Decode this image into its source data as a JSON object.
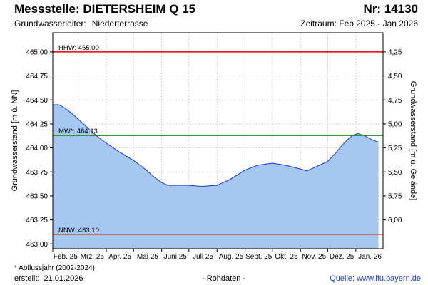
{
  "header": {
    "title": "Messstelle: DIETERSHEIM Q 15",
    "number": "Nr: 14130",
    "aquifer_label": "Grundwasserleiter:",
    "aquifer_value": "Niederterrasse",
    "period": "Zeitraum: Feb 2025 - Jan 2026"
  },
  "footer": {
    "footnote": "* Abflussjahr (2002-2024)",
    "created_label": "erstellt:",
    "created_date": "21.01.2026",
    "raw": "- Rohdaten -",
    "source": "Quelle:  www.lfu.bayern.de"
  },
  "chart_data": {
    "type": "area",
    "ylabel_left": "Grundwasserstand [m ü. NN]",
    "ylabel_right": "Grundwasserstand [m u. Gelände]",
    "ylim_left": [
      462.95,
      465.2
    ],
    "yticks_left": [
      463.0,
      463.25,
      463.5,
      463.75,
      464.0,
      464.25,
      464.5,
      464.75,
      465.0
    ],
    "ytick_labels_left": [
      "463,00",
      "463,25",
      "463,50",
      "463,75",
      "464,00",
      "464,25",
      "464,50",
      "464,75",
      "465,00"
    ],
    "right_axis_offset": 469.25,
    "yticks_right": [
      4.25,
      4.5,
      4.75,
      5.0,
      5.25,
      5.5,
      5.75,
      6.0
    ],
    "ytick_labels_right": [
      "4,25",
      "4,50",
      "4,75",
      "5,00",
      "5,25",
      "5,50",
      "5,75",
      "6,00"
    ],
    "xlim": [
      "2025-02-01",
      "2026-01-31"
    ],
    "xticks": [
      "Feb. 25",
      "Mrz. 25",
      "Apr. 25",
      "Mai 25",
      "Juni 25",
      "Juli 25",
      "Aug. 25",
      "Sept. 25",
      "Okt. 25",
      "Nov. 25",
      "Dez. 25",
      "Jan. 26"
    ],
    "grid": true,
    "reference_lines": [
      {
        "label": "HHW: 465.00",
        "value": 465.0,
        "color": "#e00000"
      },
      {
        "label": "MW*: 464.13",
        "value": 464.13,
        "color": "#1a8c1a"
      },
      {
        "label": "NNW: 463.10",
        "value": 463.1,
        "color": "#e00000"
      }
    ],
    "series": [
      {
        "color": "#2244dd",
        "fill": "#a6c8f0",
        "points": [
          [
            "2025-02-01",
            464.45
          ],
          [
            "2025-02-08",
            464.45
          ],
          [
            "2025-02-15",
            464.41
          ],
          [
            "2025-02-22",
            464.36
          ],
          [
            "2025-03-01",
            464.3
          ],
          [
            "2025-03-08",
            464.24
          ],
          [
            "2025-03-15",
            464.18
          ],
          [
            "2025-03-22",
            464.12
          ],
          [
            "2025-04-01",
            464.05
          ],
          [
            "2025-04-15",
            463.96
          ],
          [
            "2025-05-01",
            463.87
          ],
          [
            "2025-05-15",
            463.77
          ],
          [
            "2025-05-22",
            463.71
          ],
          [
            "2025-06-01",
            463.64
          ],
          [
            "2025-06-08",
            463.61
          ],
          [
            "2025-06-15",
            463.61
          ],
          [
            "2025-07-01",
            463.61
          ],
          [
            "2025-07-15",
            463.6
          ],
          [
            "2025-08-01",
            463.61
          ],
          [
            "2025-08-15",
            463.67
          ],
          [
            "2025-09-01",
            463.77
          ],
          [
            "2025-09-15",
            463.82
          ],
          [
            "2025-10-01",
            463.84
          ],
          [
            "2025-10-15",
            463.82
          ],
          [
            "2025-11-01",
            463.78
          ],
          [
            "2025-11-08",
            463.76
          ],
          [
            "2025-11-15",
            463.79
          ],
          [
            "2025-12-01",
            463.86
          ],
          [
            "2025-12-10",
            463.95
          ],
          [
            "2025-12-20",
            464.06
          ],
          [
            "2025-12-28",
            464.13
          ],
          [
            "2026-01-03",
            464.15
          ],
          [
            "2026-01-10",
            464.13
          ],
          [
            "2026-01-20",
            464.08
          ],
          [
            "2026-01-26",
            464.06
          ]
        ]
      }
    ]
  }
}
